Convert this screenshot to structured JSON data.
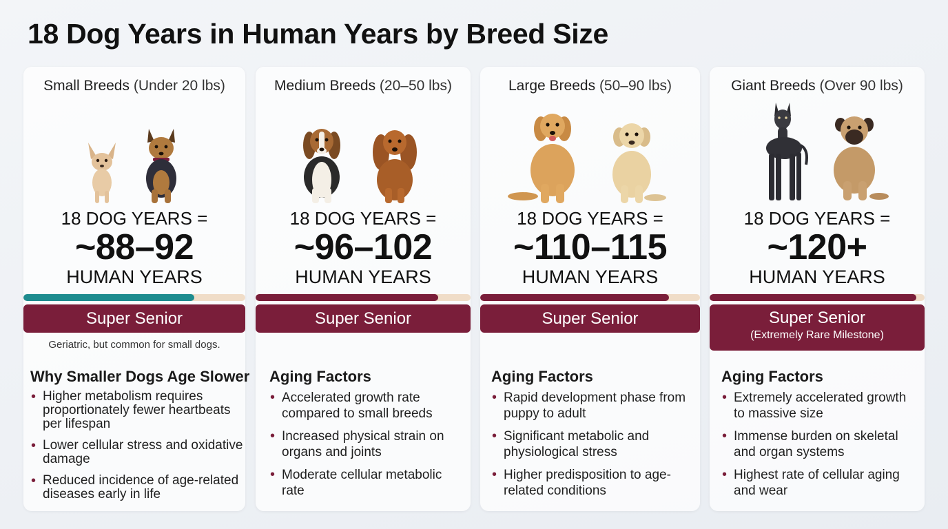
{
  "title": "18 Dog Years in Human Years by Breed Size",
  "colors": {
    "accent": "#7a1e3a",
    "small_bar": "#1e8c8f",
    "bar_track": "#f0ddc8"
  },
  "cards": [
    {
      "heading_strong": "Small Breeds",
      "heading_light": "(Under 20 lbs)",
      "equation": "18 DOG YEARS =",
      "value": "~88–92",
      "unit": "HUMAN YEARS",
      "progress": 0.77,
      "stage": "Super Senior",
      "stage_sub": "",
      "note": "Geriatric, but common for small dogs.",
      "section_title": "Why Smaller Dogs Age Slower",
      "points": [
        "Higher metabolism requires proportionately fewer heartbeats per lifespan",
        "Lower cellular stress and oxidative damage",
        "Reduced incidence of age-related diseases early in life"
      ],
      "dog_icons": [
        "chihuahua-icon",
        "yorkshire-terrier-icon"
      ]
    },
    {
      "heading_strong": "Medium Breeds",
      "heading_light": "(20–50 lbs)",
      "equation": "18 DOG YEARS =",
      "value": "~96–102",
      "unit": "HUMAN YEARS",
      "progress": 0.85,
      "stage": "Super Senior",
      "stage_sub": "",
      "note": "",
      "section_title": "Aging Factors",
      "points": [
        "Accelerated growth rate compared to small breeds",
        "Increased physical strain on organs and joints",
        "Moderate cellular metabolic rate"
      ],
      "dog_icons": [
        "beagle-icon",
        "cocker-spaniel-icon"
      ]
    },
    {
      "heading_strong": "Large Breeds",
      "heading_light": "(50–90 lbs)",
      "equation": "18 DOG YEARS =",
      "value": "~110–115",
      "unit": "HUMAN YEARS",
      "progress": 0.86,
      "stage": "Super Senior",
      "stage_sub": "",
      "note": "",
      "section_title": "Aging Factors",
      "points": [
        "Rapid development phase from puppy to adult",
        "Significant metabolic and physiological stress",
        "Higher predisposition to age-related conditions"
      ],
      "dog_icons": [
        "golden-retriever-icon",
        "labrador-icon"
      ]
    },
    {
      "heading_strong": "Giant Breeds",
      "heading_light": "(Over 90 lbs)",
      "equation": "18 DOG YEARS =",
      "value": "~120+",
      "unit": "HUMAN YEARS",
      "progress": 0.96,
      "stage": "Super Senior",
      "stage_sub": "(Extremely Rare Milestone)",
      "note": "",
      "section_title": "Aging Factors",
      "points": [
        "Extremely accelerated growth to massive size",
        "Immense burden on skeletal and organ systems",
        "Highest rate of cellular aging and wear"
      ],
      "dog_icons": [
        "great-dane-icon",
        "mastiff-icon"
      ]
    }
  ]
}
